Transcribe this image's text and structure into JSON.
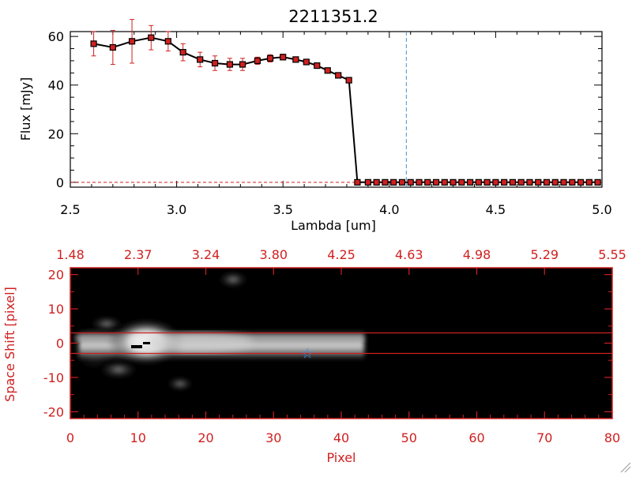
{
  "chart_data": [
    {
      "type": "line",
      "title": "2211351.2",
      "xlabel": "Lambda [um]",
      "ylabel": "Flux [mJy]",
      "xlim": [
        2.5,
        5.0
      ],
      "ylim": [
        -2,
        62
      ],
      "xticks": [
        "2.5",
        "3.0",
        "3.5",
        "4.0",
        "4.5",
        "5.0"
      ],
      "yticks": [
        "0",
        "20",
        "40",
        "60"
      ],
      "xtick_values": [
        2.5,
        3.0,
        3.5,
        4.0,
        4.5,
        5.0
      ],
      "ytick_values": [
        0,
        20,
        40,
        60
      ],
      "grid": false,
      "colors": {
        "line": "#000000",
        "marker": "#d02020",
        "errorbar": "#d02020",
        "vline": "#4a90c8",
        "zero_line": "#d02020"
      },
      "vline_x": 4.08,
      "series": [
        {
          "x": [
            2.61,
            2.7,
            2.79,
            2.88,
            2.96,
            3.03,
            3.11,
            3.18,
            3.25,
            3.31,
            3.38,
            3.44,
            3.5,
            3.56,
            3.61,
            3.66,
            3.71,
            3.76,
            3.81,
            3.85,
            3.9,
            3.94,
            3.98,
            4.02,
            4.06,
            4.1,
            4.14,
            4.18,
            4.22,
            4.26,
            4.3,
            4.34,
            4.38,
            4.42,
            4.46,
            4.5,
            4.54,
            4.58,
            4.62,
            4.66,
            4.7,
            4.74,
            4.78,
            4.82,
            4.86,
            4.9,
            4.94,
            4.98
          ],
          "y": [
            57,
            55.5,
            58,
            59.5,
            58,
            53.5,
            50.5,
            49,
            48.5,
            48.5,
            50,
            51,
            51.5,
            50.5,
            49.5,
            48,
            46,
            44,
            42,
            0,
            0,
            0,
            0,
            0,
            0,
            0,
            0,
            0,
            0,
            0,
            0,
            0,
            0,
            0,
            0,
            0,
            0,
            0,
            0,
            0,
            0,
            0,
            0,
            0,
            0,
            0,
            0,
            0
          ],
          "yerr": [
            5,
            7,
            9,
            5,
            4,
            3.5,
            3,
            3,
            2.5,
            2.5,
            1.5,
            1.5,
            1.2,
            1,
            1,
            1,
            1,
            1,
            1,
            0,
            0,
            0,
            0,
            0,
            0,
            0,
            0,
            0,
            0,
            0,
            0,
            0,
            0,
            0,
            0,
            0,
            0,
            0,
            0,
            0,
            0,
            0,
            0,
            0,
            0,
            0,
            0,
            0
          ]
        }
      ]
    },
    {
      "type": "heatmap",
      "xlabel": "Pixel",
      "ylabel": "Space Shift [pixel]",
      "xlim": [
        0,
        80
      ],
      "ylim": [
        -22,
        22
      ],
      "xticks": [
        "0",
        "10",
        "20",
        "30",
        "40",
        "50",
        "60",
        "70",
        "80"
      ],
      "xtick_values": [
        0,
        10,
        20,
        30,
        40,
        50,
        60,
        70,
        80
      ],
      "yticks": [
        "-20",
        "-10",
        "0",
        "10",
        "20"
      ],
      "ytick_values": [
        -20,
        -10,
        0,
        10,
        20
      ],
      "top_ticks": [
        "1.48",
        "2.37",
        "3.24",
        "3.80",
        "4.25",
        "4.63",
        "4.98",
        "5.29",
        "5.55"
      ],
      "colors": {
        "axes": "#d02020",
        "background": "#000000",
        "marker": "#3a8ee6"
      },
      "hlines": [
        3,
        -3
      ],
      "marker": {
        "x": 35,
        "y": -3,
        "symbol": "star"
      },
      "trace_end": 43.5
    }
  ]
}
